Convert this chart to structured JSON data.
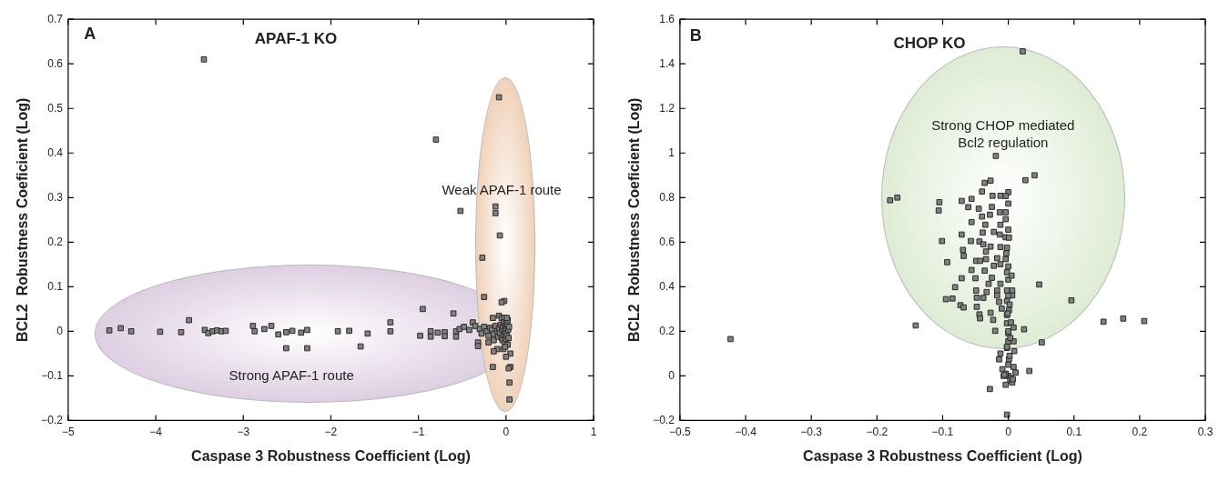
{
  "chart_data": [
    {
      "type": "scatter",
      "title": "APAF-1 KO",
      "xlabel": "Caspase 3 Robustness Coefficient (Log)",
      "ylabel": "BCL2  Robustness Coeficient (Log)",
      "annotations": [
        "A",
        "Weak APAF-1 route",
        "Strong APAF-1 route"
      ],
      "marker": "square",
      "xlim": [
        -5,
        1
      ],
      "xticks": [
        -5,
        -4,
        -3,
        -2,
        -1,
        0,
        1
      ],
      "ylim": [
        -0.2,
        0.7
      ],
      "yticks": [
        -0.2,
        -0.1,
        0,
        0.1,
        0.2,
        0.3,
        0.4,
        0.5,
        0.6,
        0.7
      ],
      "series": [
        {
          "color": "#808080",
          "x": [
            -3.45,
            -0.08,
            -0.8,
            -0.52,
            -0.12,
            -0.12,
            -0.07,
            -0.27,
            -0.25,
            -0.02,
            -0.05,
            -0.95,
            -0.6,
            -0.15,
            -0.08,
            -0.05,
            -0.02,
            -4.53,
            -4.4,
            -4.28,
            -3.95,
            -3.71,
            -3.62,
            -3.44,
            -3.4,
            -3.35,
            -3.3,
            -3.25,
            -3.2,
            -2.89,
            -2.87,
            -2.76,
            -2.68,
            -2.6,
            -2.51,
            -2.51,
            -2.44,
            -2.34,
            -2.27,
            -2.27,
            -1.92,
            -1.79,
            -1.66,
            -1.58,
            -1.32,
            -1.32,
            -0.98,
            -0.86,
            -0.86,
            -0.78,
            -0.7,
            -0.7,
            -0.57,
            -0.57,
            -0.53,
            -0.48,
            -0.42,
            -0.38,
            -0.35,
            -0.32,
            -0.32,
            -0.2,
            -0.14,
            -0.1,
            -0.14,
            -0.15,
            0.04,
            0.04,
            0.05,
            0.0,
            0.05,
            0.03,
            -0.03,
            -0.3,
            -0.28,
            -0.25,
            -0.22,
            -0.2,
            -0.18,
            -0.16,
            -0.14,
            -0.12,
            -0.1,
            -0.09,
            -0.08,
            -0.07,
            -0.06,
            -0.05,
            -0.045,
            -0.04,
            -0.035,
            -0.03,
            -0.025,
            -0.02,
            -0.015,
            -0.01,
            -0.005,
            0,
            0,
            0.005,
            0.01,
            0.015,
            0.02,
            0.025,
            0.03,
            0.035,
            0.02,
            -0.01,
            0.01
          ],
          "values": [
            0.61,
            0.525,
            0.43,
            0.27,
            0.28,
            0.265,
            0.215,
            0.165,
            0.077,
            0.068,
            0.065,
            0.05,
            0.04,
            0.03,
            0.035,
            0.03,
            0.03,
            0.002,
            0.007,
            0,
            -0.001,
            -0.002,
            0.025,
            0.003,
            -0.004,
            0,
            0.002,
            0,
            0.001,
            0.012,
            0,
            0.005,
            0.012,
            -0.007,
            -0.002,
            -0.038,
            0.001,
            -0.003,
            0.003,
            -0.038,
            0,
            0.001,
            -0.034,
            -0.005,
            0.02,
            0,
            -0.01,
            0,
            -0.012,
            -0.003,
            -0.002,
            -0.011,
            0,
            -0.012,
            0.005,
            0.01,
            0.003,
            0.02,
            0.012,
            -0.025,
            -0.033,
            -0.025,
            -0.02,
            -0.04,
            -0.045,
            -0.08,
            -0.115,
            -0.153,
            -0.05,
            -0.057,
            -0.08,
            -0.083,
            -0.04,
            0.005,
            -0.005,
            0.01,
            0,
            -0.01,
            0.008,
            0.003,
            -0.006,
            0.012,
            0,
            -0.012,
            0.006,
            -0.004,
            0.015,
            -0.015,
            0.004,
            -0.02,
            0.01,
            -0.008,
            0.02,
            0,
            -0.025,
            0.012,
            -0.005,
            0.018,
            -0.018,
            0.006,
            -0.01,
            0.015,
            -0.03,
            0.004,
            -0.015,
            0.01,
            0.025,
            -0.035,
            0.03
          ]
        }
      ]
    },
    {
      "type": "scatter",
      "title": "CHOP KO",
      "xlabel": "Caspase 3 Robustness Coefficient (Log)",
      "ylabel": "BCL2  Robustness Coeficient (Log)",
      "annotations": [
        "B",
        "Strong CHOP mediated Bcl2 regulation"
      ],
      "marker": "square",
      "xlim": [
        -0.5,
        0.3
      ],
      "xticks": [
        -0.5,
        -0.4,
        -0.3,
        -0.2,
        -0.1,
        0,
        0.1,
        0.2,
        0.3
      ],
      "ylim": [
        -0.2,
        1.6
      ],
      "yticks": [
        -0.2,
        0,
        0.2,
        0.4,
        0.6,
        0.8,
        1,
        1.2,
        1.4,
        1.6
      ],
      "series": [
        {
          "color": "#808080",
          "x": [
            0.022,
            -0.019,
            0.04,
            0.026,
            -0.036,
            -0.027,
            -0.18,
            -0.169,
            -0.105,
            -0.106,
            -0.04,
            0,
            -0.071,
            -0.056,
            -0.061,
            -0.024,
            -0.012,
            -0.004,
            0,
            -0.045,
            -0.025,
            -0.013,
            -0.004,
            -0.04,
            -0.028,
            -0.004,
            -0.056,
            -0.035,
            -0.012,
            0,
            -0.039,
            -0.022,
            -0.013,
            -0.004,
            -0.071,
            -0.101,
            -0.057,
            -0.044,
            -0.038,
            -0.027,
            -0.012,
            -0.002,
            -0.069,
            -0.068,
            -0.034,
            -0.017,
            -0.004,
            -0.093,
            -0.049,
            -0.043,
            -0.034,
            -0.022,
            -0.012,
            0,
            -0.056,
            -0.036,
            -0.002,
            -0.071,
            -0.05,
            -0.025,
            0,
            -0.03,
            -0.012,
            0.047,
            -0.081,
            -0.049,
            -0.033,
            -0.017,
            -0.002,
            0.006,
            -0.048,
            -0.038,
            -0.017,
            0.006,
            0.096,
            -0.095,
            -0.085,
            -0.014,
            -0.002,
            -0.073,
            -0.068,
            -0.048,
            -0.01,
            0.001,
            -0.044,
            -0.027,
            -0.043,
            -0.023,
            -0.002,
            -0.002,
            0.145,
            0.175,
            0.207,
            -0.141,
            -0.423,
            -0.02,
            0.008,
            0.024,
            0,
            0,
            0.008,
            0.051,
            -0.002,
            0.009,
            -0.012,
            -0.014,
            0.001,
            -0.009,
            0.011,
            0.032,
            -0.007,
            0,
            0.004,
            -0.004,
            0.003,
            0.006,
            -0.028,
            -0.002,
            0,
            0.002,
            -0.002,
            0.003,
            0,
            0.004,
            -0.001,
            0.002,
            0,
            0.005,
            -0.003,
            0.001,
            -0.006,
            0.007,
            -0.004,
            0.008
          ],
          "values": [
            1.456,
            0.987,
            0.9,
            0.878,
            0.866,
            0.876,
            0.788,
            0.8,
            0.779,
            0.742,
            0.827,
            0.824,
            0.785,
            0.794,
            0.757,
            0.808,
            0.808,
            0.807,
            0.773,
            0.75,
            0.758,
            0.734,
            0.734,
            0.715,
            0.723,
            0.703,
            0.69,
            0.678,
            0.678,
            0.656,
            0.643,
            0.646,
            0.634,
            0.622,
            0.634,
            0.605,
            0.605,
            0.603,
            0.59,
            0.58,
            0.578,
            0.575,
            0.565,
            0.538,
            0.558,
            0.528,
            0.524,
            0.51,
            0.516,
            0.516,
            0.524,
            0.494,
            0.501,
            0.491,
            0.475,
            0.472,
            0.465,
            0.438,
            0.438,
            0.44,
            0.432,
            0.413,
            0.413,
            0.41,
            0.398,
            0.383,
            0.376,
            0.383,
            0.383,
            0.383,
            0.351,
            0.35,
            0.361,
            0.361,
            0.339,
            0.344,
            0.347,
            0.332,
            0.336,
            0.317,
            0.307,
            0.31,
            0.302,
            0.295,
            0.276,
            0.283,
            0.258,
            0.251,
            0.273,
            0.236,
            0.243,
            0.257,
            0.246,
            0.226,
            0.165,
            0.202,
            0.217,
            0.209,
            0.192,
            0.155,
            0.155,
            0.15,
            0.125,
            0.111,
            0.1,
            0.074,
            0.074,
            0.03,
            0.015,
            0.022,
            0,
            0,
            -0.01,
            0.01,
            -0.02,
            -0.03,
            -0.059,
            -0.174,
            0.05,
            0.09,
            0.13,
            0.17,
            0.2,
            0.24,
            0.28,
            0.32,
            0.36,
            0.45,
            0.55,
            0.62,
            0.005,
            -0.015,
            -0.04,
            0.04
          ]
        }
      ]
    }
  ]
}
